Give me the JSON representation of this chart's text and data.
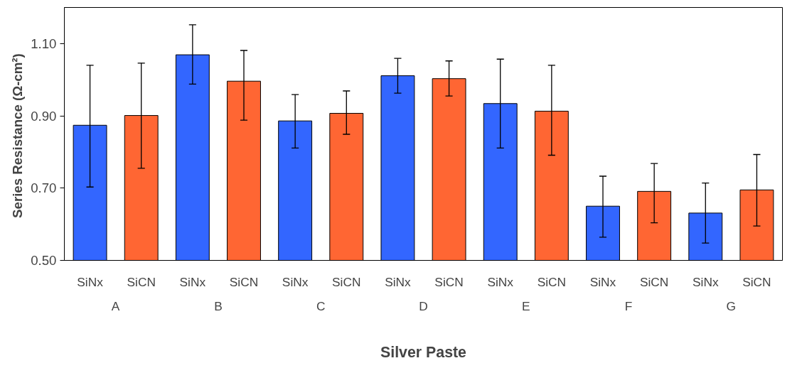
{
  "chart_data": {
    "type": "bar",
    "xlabel": "Silver Paste",
    "ylabel": "Series Resistance  (Ω-cm²)",
    "categories": [
      "A",
      "B",
      "C",
      "D",
      "E",
      "F",
      "G"
    ],
    "series": [
      {
        "name": "SiNx",
        "color": "#3366ff",
        "values": [
          0.874,
          1.069,
          0.886,
          1.011,
          0.934,
          0.65,
          0.631
        ],
        "errors": [
          [
            0.703,
            1.04
          ],
          [
            0.988,
            1.152
          ],
          [
            0.811,
            0.959
          ],
          [
            0.963,
            1.059
          ],
          [
            0.811,
            1.057
          ],
          [
            0.564,
            0.733
          ],
          [
            0.548,
            0.714
          ]
        ]
      },
      {
        "name": "SiCN",
        "color": "#ff6633",
        "values": [
          0.901,
          0.996,
          0.907,
          1.003,
          0.913,
          0.691,
          0.695
        ],
        "errors": [
          [
            0.755,
            1.046
          ],
          [
            0.888,
            1.081
          ],
          [
            0.849,
            0.969
          ],
          [
            0.955,
            1.052
          ],
          [
            0.791,
            1.04
          ],
          [
            0.604,
            0.768
          ],
          [
            0.595,
            0.793
          ]
        ]
      }
    ],
    "ylim": [
      0.5,
      1.2
    ],
    "yticks": [
      {
        "value": 0.5,
        "label": "0.50"
      },
      {
        "value": 0.7,
        "label": "0.70"
      },
      {
        "value": 0.9,
        "label": "0.90"
      },
      {
        "value": 1.1,
        "label": "1.10"
      }
    ],
    "grid": false
  }
}
